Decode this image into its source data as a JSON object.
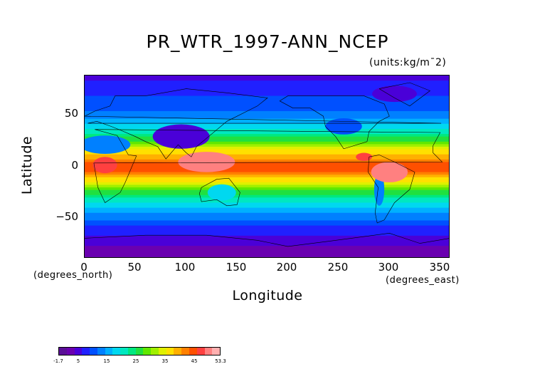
{
  "title": "PR_WTR_1997-ANN_NCEP",
  "units": "(units:kg/m¯2)",
  "axes": {
    "xlabel": "Longitude",
    "ylabel": "Latitude",
    "x_unit": "(degrees_east)",
    "y_unit": "(degrees_north)",
    "x_ticks": [
      "0",
      "50",
      "100",
      "150",
      "200",
      "250",
      "300",
      "350"
    ],
    "y_ticks": [
      "50",
      "0",
      "−50"
    ]
  },
  "map": {
    "projection": "equirectangular",
    "lon_range": [
      0,
      360
    ],
    "lat_range": [
      -90,
      90
    ],
    "field": "precipitable water, annual mean 1997",
    "coastlines": true
  },
  "colorbar": {
    "labels": [
      "-1.7",
      "5",
      "15",
      "25",
      "35",
      "45",
      "53.3"
    ],
    "colors": [
      "#5a0f96",
      "#6a00b0",
      "#4a00d8",
      "#2020ff",
      "#0050ff",
      "#0080ff",
      "#00b0ff",
      "#00d8f0",
      "#00e8c0",
      "#00e880",
      "#20e040",
      "#60e800",
      "#a0f000",
      "#e0f000",
      "#ffe000",
      "#ffb000",
      "#ff8000",
      "#ff5000",
      "#ff4040",
      "#ff8080",
      "#ffb0b0"
    ]
  },
  "chart_data": {
    "type": "heatmap",
    "title": "PR_WTR_1997-ANN_NCEP",
    "xlabel": "Longitude",
    "ylabel": "Latitude",
    "xlim": [
      0,
      360
    ],
    "ylim": [
      -90,
      90
    ],
    "x_ticks": [
      0,
      50,
      100,
      150,
      200,
      250,
      300,
      350
    ],
    "y_ticks": [
      -50,
      0,
      50
    ],
    "colorbar_range": [
      -1.7,
      53.3
    ],
    "colorbar_ticks": [
      -1.7,
      5,
      15,
      25,
      35,
      45,
      53.3
    ],
    "zonal_mean_profile": {
      "lat": [
        -90,
        -75,
        -60,
        -45,
        -30,
        -15,
        0,
        15,
        30,
        45,
        60,
        75,
        90
      ],
      "value": [
        2,
        4,
        8,
        14,
        22,
        34,
        46,
        36,
        24,
        15,
        10,
        8,
        5
      ]
    }
  }
}
